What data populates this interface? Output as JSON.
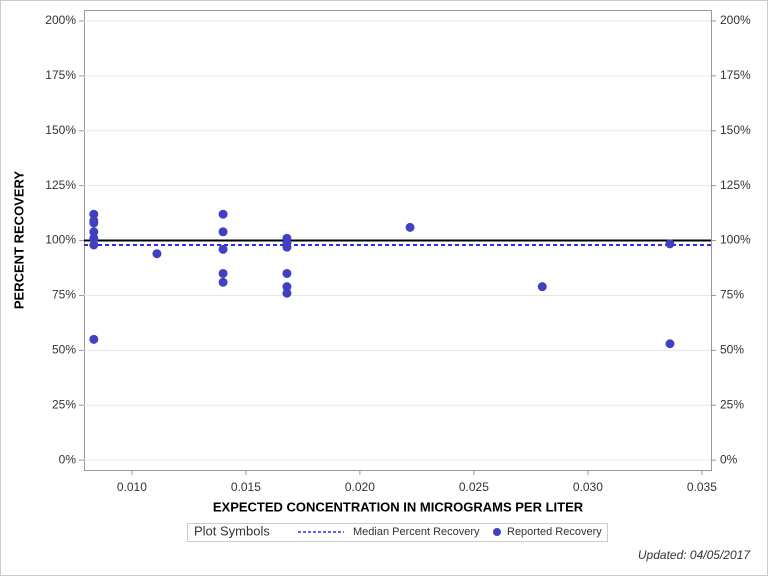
{
  "chart_data": {
    "type": "scatter",
    "x_label": "EXPECTED CONCENTRATION IN MICROGRAMS PER LITER",
    "y_label": "PERCENT RECOVERY",
    "xlim": [
      0.0079,
      0.0354
    ],
    "ylim": [
      -4.5,
      205
    ],
    "xticks": [
      {
        "value": 0.01,
        "label": "0.010"
      },
      0.015,
      {
        "value": 0.02,
        "label": "0.020"
      },
      0.025,
      {
        "value": 0.03,
        "label": "0.030"
      },
      0.035
    ],
    "yticks": [
      {
        "value": 0,
        "label": "0%"
      },
      {
        "value": 25,
        "label": "25%"
      },
      {
        "value": 50,
        "label": "50%"
      },
      {
        "value": 75,
        "label": "75%"
      },
      {
        "value": 100,
        "label": "100%"
      },
      {
        "value": 125,
        "label": "125%"
      },
      {
        "value": 150,
        "label": "150%"
      },
      {
        "value": 175,
        "label": "175%"
      },
      {
        "value": 200,
        "label": "200%"
      }
    ],
    "grid": true,
    "reference_line": 100,
    "median_line": {
      "name": "Median Percent Recovery",
      "color": "#2a2aff",
      "value": 98
    },
    "series": [
      {
        "name": "Reported Recovery",
        "color": "#4040c0",
        "x": [
          0.00833,
          0.00833,
          0.00833,
          0.00833,
          0.00833,
          0.00833,
          0.00833,
          0.0111,
          0.014,
          0.014,
          0.014,
          0.014,
          0.014,
          0.0168,
          0.0168,
          0.0168,
          0.0168,
          0.0168,
          0.0168,
          0.0222,
          0.028,
          0.0336,
          0.0336
        ],
        "values": [
          112,
          109,
          108,
          104,
          101,
          98,
          55,
          94,
          112,
          104,
          96,
          85,
          81,
          101,
          99,
          97,
          85,
          79,
          76,
          106,
          79,
          98.5,
          53
        ]
      }
    ],
    "legend_title": "Plot Symbols",
    "footer": "Updated: 04/05/2017"
  }
}
